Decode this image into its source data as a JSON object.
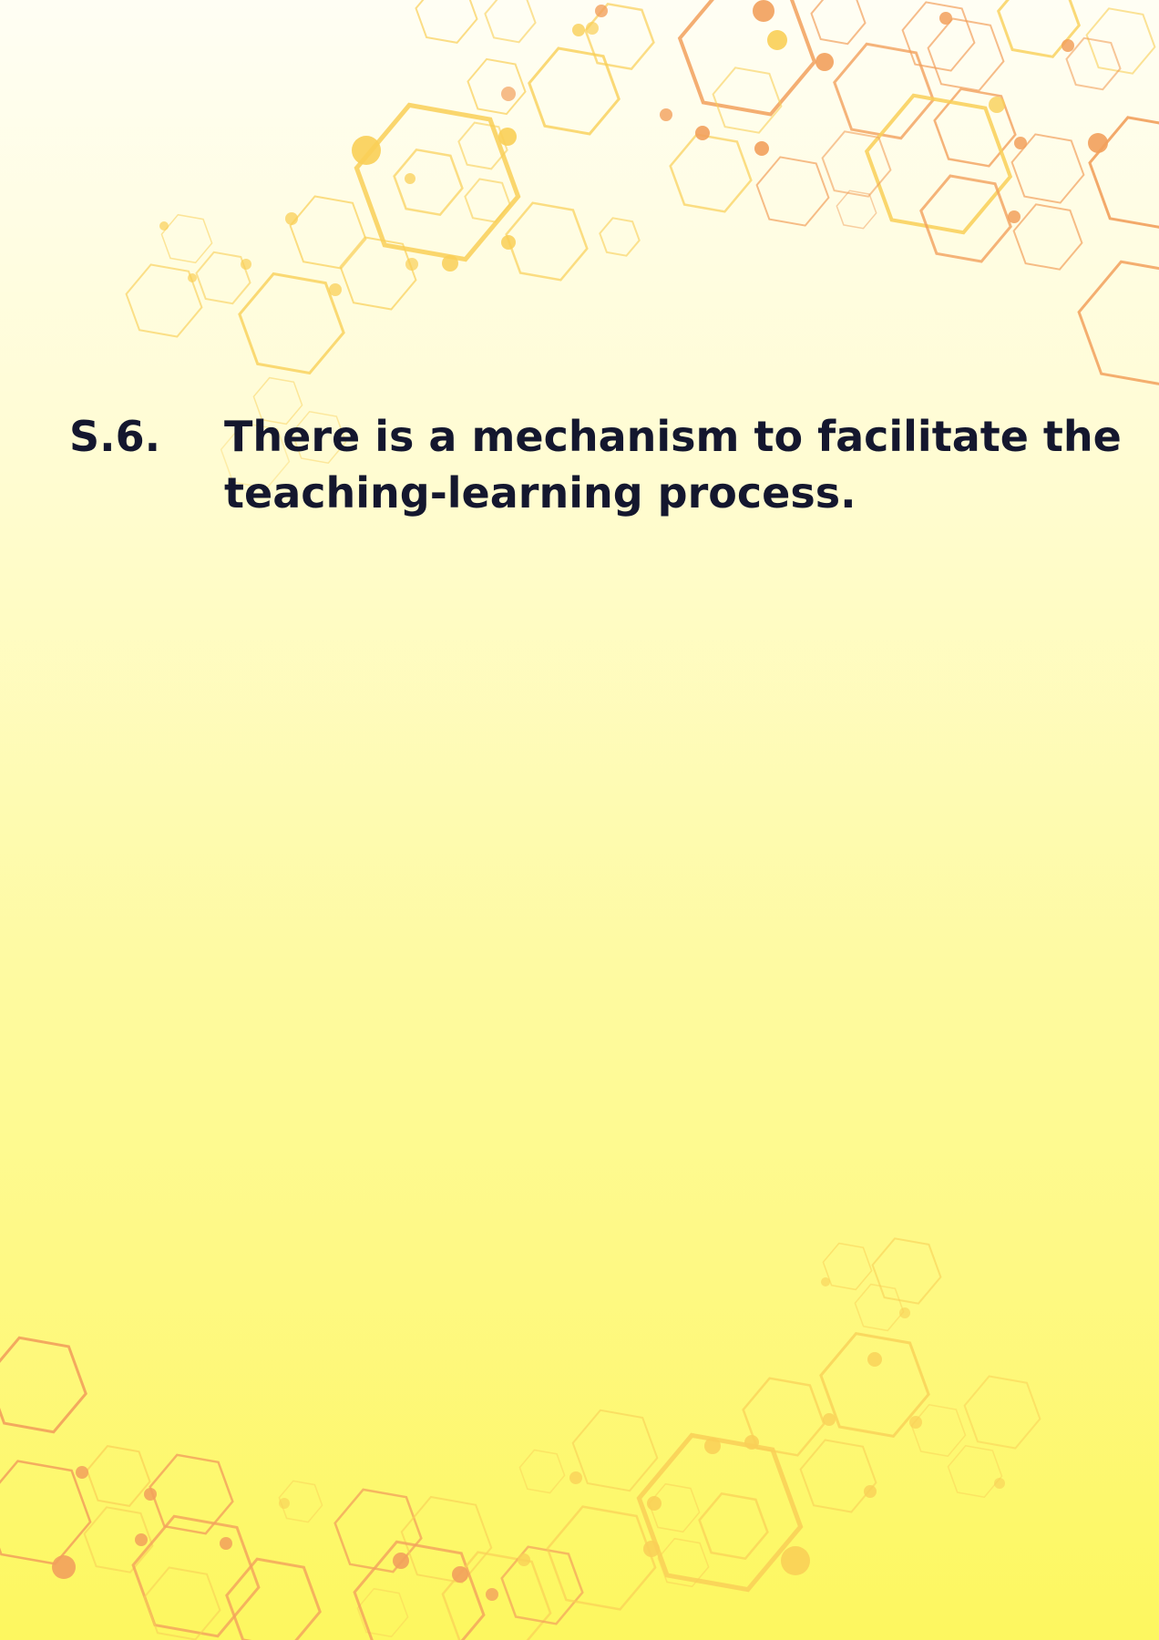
{
  "section": {
    "number": "S.6.",
    "title_line1": "There is a mechanism to facilitate the",
    "title_line2": "teaching-learning process."
  },
  "colors": {
    "background_top": "#fffef4",
    "background_bottom": "#fdf75f",
    "text": "#14172e",
    "hex_yellow": "#f9cf57",
    "hex_orange": "#f2a05c"
  }
}
